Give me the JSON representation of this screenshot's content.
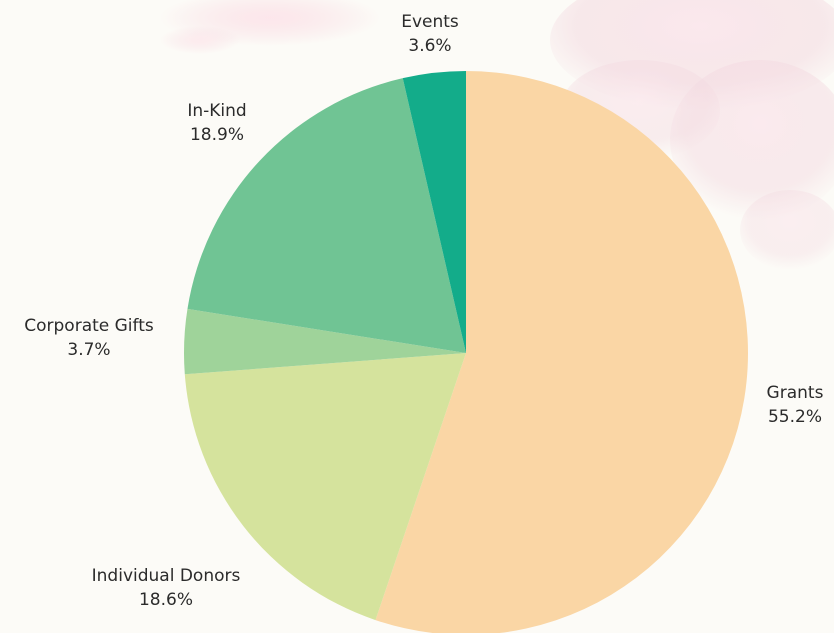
{
  "chart_data": {
    "type": "pie",
    "title": "",
    "start_angle_deg": 0,
    "direction": "clockwise",
    "slices": [
      {
        "label": "Grants",
        "value": 55.2,
        "value_label": "55.2%",
        "color": "#fad6a5"
      },
      {
        "label": "Individual Donors",
        "value": 18.6,
        "value_label": "18.6%",
        "color": "#d5e39d"
      },
      {
        "label": "Corporate Gifts",
        "value": 3.7,
        "value_label": "3.7%",
        "color": "#9fd39a"
      },
      {
        "label": "In-Kind",
        "value": 18.9,
        "value_label": "18.9%",
        "color": "#70c494"
      },
      {
        "label": "Events",
        "value": 3.6,
        "value_label": "3.6%",
        "color": "#13ac8a"
      }
    ],
    "legend": "none",
    "labels_position": "outside"
  },
  "background": {
    "page_color": "#fcfbf7",
    "decoration": "soft pink watercolor flower petals in the top corners"
  }
}
